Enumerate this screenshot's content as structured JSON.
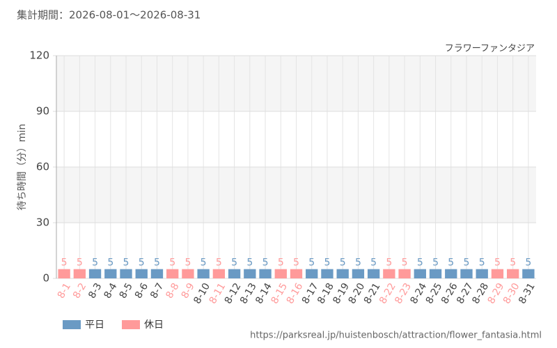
{
  "chart_data": {
    "type": "bar",
    "title": "集計期間：2026-08-01～2026-08-31",
    "subtitle": "フラワーファンタジア",
    "y_label": "待ち時間（分）min",
    "source": "https://parksreal.jp/huistenbosch/attraction/flower_fantasia.html",
    "categories": [
      "8-1",
      "8-2",
      "8-3",
      "8-4",
      "8-5",
      "8-6",
      "8-7",
      "8-8",
      "8-9",
      "8-10",
      "8-11",
      "8-12",
      "8-13",
      "8-14",
      "8-15",
      "8-16",
      "8-17",
      "8-18",
      "8-19",
      "8-20",
      "8-21",
      "8-22",
      "8-23",
      "8-24",
      "8-25",
      "8-26",
      "8-27",
      "8-28",
      "8-29",
      "8-30",
      "8-31"
    ],
    "series": [
      {
        "name": "平日",
        "color": "#6a9ac4",
        "values": [
          null,
          null,
          5,
          5,
          5,
          5,
          5,
          null,
          null,
          5,
          null,
          5,
          5,
          5,
          null,
          null,
          5,
          5,
          5,
          5,
          5,
          null,
          null,
          5,
          5,
          5,
          5,
          5,
          null,
          null,
          5
        ]
      },
      {
        "name": "休日",
        "color": "#ff9a9a",
        "values": [
          5,
          5,
          null,
          null,
          null,
          null,
          null,
          5,
          5,
          null,
          5,
          null,
          null,
          null,
          5,
          5,
          null,
          null,
          null,
          null,
          null,
          5,
          5,
          null,
          null,
          null,
          null,
          null,
          5,
          5,
          null
        ]
      }
    ],
    "ylim": [
      0,
      120
    ],
    "yticks": [
      0,
      30,
      60,
      90,
      120
    ],
    "grid": true
  }
}
